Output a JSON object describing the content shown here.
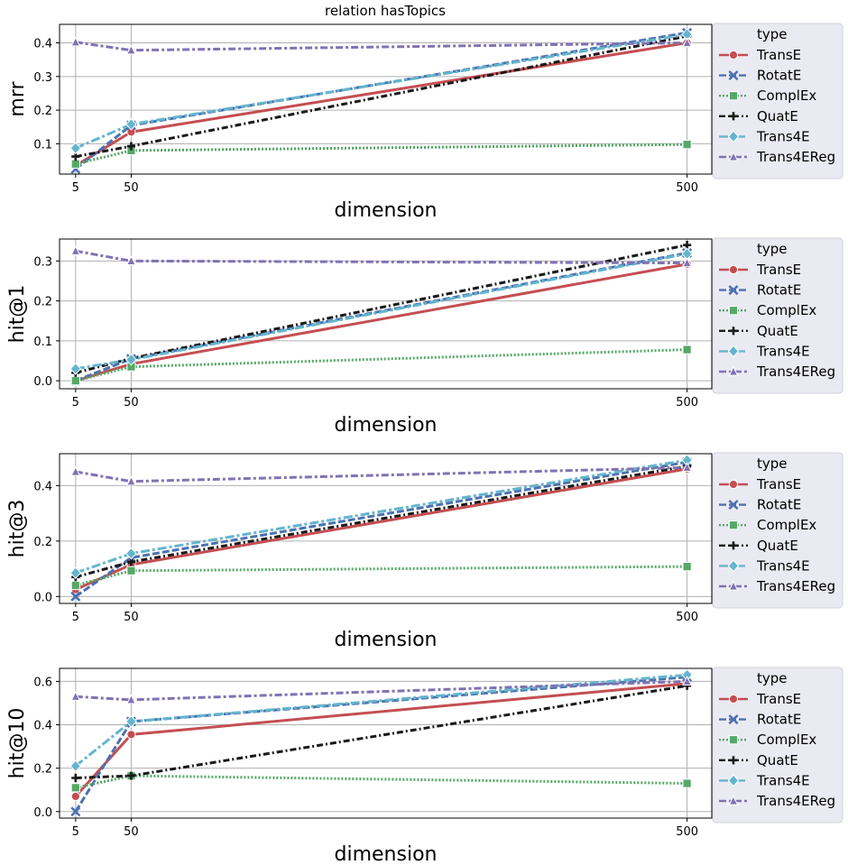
{
  "title": "relation hasTopics",
  "legend_title": "type",
  "chart_data": [
    {
      "type": "line",
      "metric": "mrr",
      "xlabel": "dimension",
      "ylabel": "mrr",
      "x": [
        5,
        50,
        500
      ],
      "xticks": [
        "5",
        "50",
        "500"
      ],
      "yticks": [
        "0.1",
        "0.2",
        "0.3",
        "0.4"
      ],
      "ytick_values": [
        0.1,
        0.2,
        0.3,
        0.4
      ],
      "ylim": [
        0.01,
        0.455
      ],
      "series": [
        {
          "name": "TransE",
          "values": [
            0.035,
            0.135,
            0.4
          ]
        },
        {
          "name": "RotatE",
          "values": [
            0.025,
            0.155,
            0.43
          ]
        },
        {
          "name": "ComplEx",
          "values": [
            0.04,
            0.08,
            0.098
          ]
        },
        {
          "name": "QuatE",
          "values": [
            0.062,
            0.093,
            0.42
          ]
        },
        {
          "name": "Trans4E",
          "values": [
            0.087,
            0.158,
            0.425
          ]
        },
        {
          "name": "Trans4EReg",
          "values": [
            0.402,
            0.378,
            0.4
          ]
        }
      ]
    },
    {
      "type": "line",
      "metric": "hit@1",
      "xlabel": "dimension",
      "ylabel": "hit@1",
      "x": [
        5,
        50,
        500
      ],
      "xticks": [
        "5",
        "50",
        "500"
      ],
      "yticks": [
        "0.0",
        "0.1",
        "0.2",
        "0.3"
      ],
      "ytick_values": [
        0.0,
        0.1,
        0.2,
        0.3
      ],
      "ylim": [
        -0.02,
        0.355
      ],
      "series": [
        {
          "name": "TransE",
          "values": [
            0.0,
            0.042,
            0.292
          ]
        },
        {
          "name": "RotatE",
          "values": [
            0.0,
            0.055,
            0.32
          ]
        },
        {
          "name": "ComplEx",
          "values": [
            0.0,
            0.035,
            0.078
          ]
        },
        {
          "name": "QuatE",
          "values": [
            0.02,
            0.056,
            0.34
          ]
        },
        {
          "name": "Trans4E",
          "values": [
            0.03,
            0.053,
            0.318
          ]
        },
        {
          "name": "Trans4EReg",
          "values": [
            0.325,
            0.3,
            0.295
          ]
        }
      ]
    },
    {
      "type": "line",
      "metric": "hit@3",
      "xlabel": "dimension",
      "ylabel": "hit@3",
      "x": [
        5,
        50,
        500
      ],
      "xticks": [
        "5",
        "50",
        "500"
      ],
      "yticks": [
        "0.0",
        "0.2",
        "0.4"
      ],
      "ytick_values": [
        0.0,
        0.2,
        0.4
      ],
      "ylim": [
        -0.025,
        0.515
      ],
      "series": [
        {
          "name": "TransE",
          "values": [
            0.025,
            0.115,
            0.46
          ]
        },
        {
          "name": "RotatE",
          "values": [
            0.0,
            0.14,
            0.485
          ]
        },
        {
          "name": "ComplEx",
          "values": [
            0.04,
            0.093,
            0.108
          ]
        },
        {
          "name": "QuatE",
          "values": [
            0.07,
            0.125,
            0.47
          ]
        },
        {
          "name": "Trans4E",
          "values": [
            0.085,
            0.155,
            0.492
          ]
        },
        {
          "name": "Trans4EReg",
          "values": [
            0.45,
            0.415,
            0.465
          ]
        }
      ]
    },
    {
      "type": "line",
      "metric": "hit@10",
      "xlabel": "dimension",
      "ylabel": "hit@10",
      "x": [
        5,
        50,
        500
      ],
      "xticks": [
        "5",
        "50",
        "500"
      ],
      "yticks": [
        "0.0",
        "0.2",
        "0.4",
        "0.6"
      ],
      "ytick_values": [
        0.0,
        0.2,
        0.4,
        0.6
      ],
      "ylim": [
        -0.03,
        0.66
      ],
      "series": [
        {
          "name": "TransE",
          "values": [
            0.07,
            0.355,
            0.59
          ]
        },
        {
          "name": "RotatE",
          "values": [
            0.0,
            0.415,
            0.62
          ]
        },
        {
          "name": "ComplEx",
          "values": [
            0.11,
            0.165,
            0.13
          ]
        },
        {
          "name": "QuatE",
          "values": [
            0.155,
            0.165,
            0.58
          ]
        },
        {
          "name": "Trans4E",
          "values": [
            0.21,
            0.415,
            0.63
          ]
        },
        {
          "name": "Trans4EReg",
          "values": [
            0.53,
            0.515,
            0.6
          ]
        }
      ]
    }
  ],
  "styles": {
    "TransE": {
      "color": "#c44e52",
      "marker": "circle",
      "dash": ""
    },
    "RotatE": {
      "color": "#4c72b0",
      "marker": "x",
      "dash": "8,3"
    },
    "ComplEx": {
      "color": "#55a868",
      "marker": "square",
      "dash": "2,2"
    },
    "QuatE": {
      "color": "#1a1a1a",
      "marker": "plus",
      "dash": "7,3,2,3"
    },
    "Trans4E": {
      "color": "#64b5cd",
      "marker": "diamond",
      "dash": "10,3,3,3"
    },
    "Trans4EReg": {
      "color": "#8172b3",
      "marker": "triangle",
      "dash": "8,3,3,3"
    }
  },
  "colors": {
    "legend_bg": "#eaeaf2",
    "grid": "#b0b0b0"
  }
}
